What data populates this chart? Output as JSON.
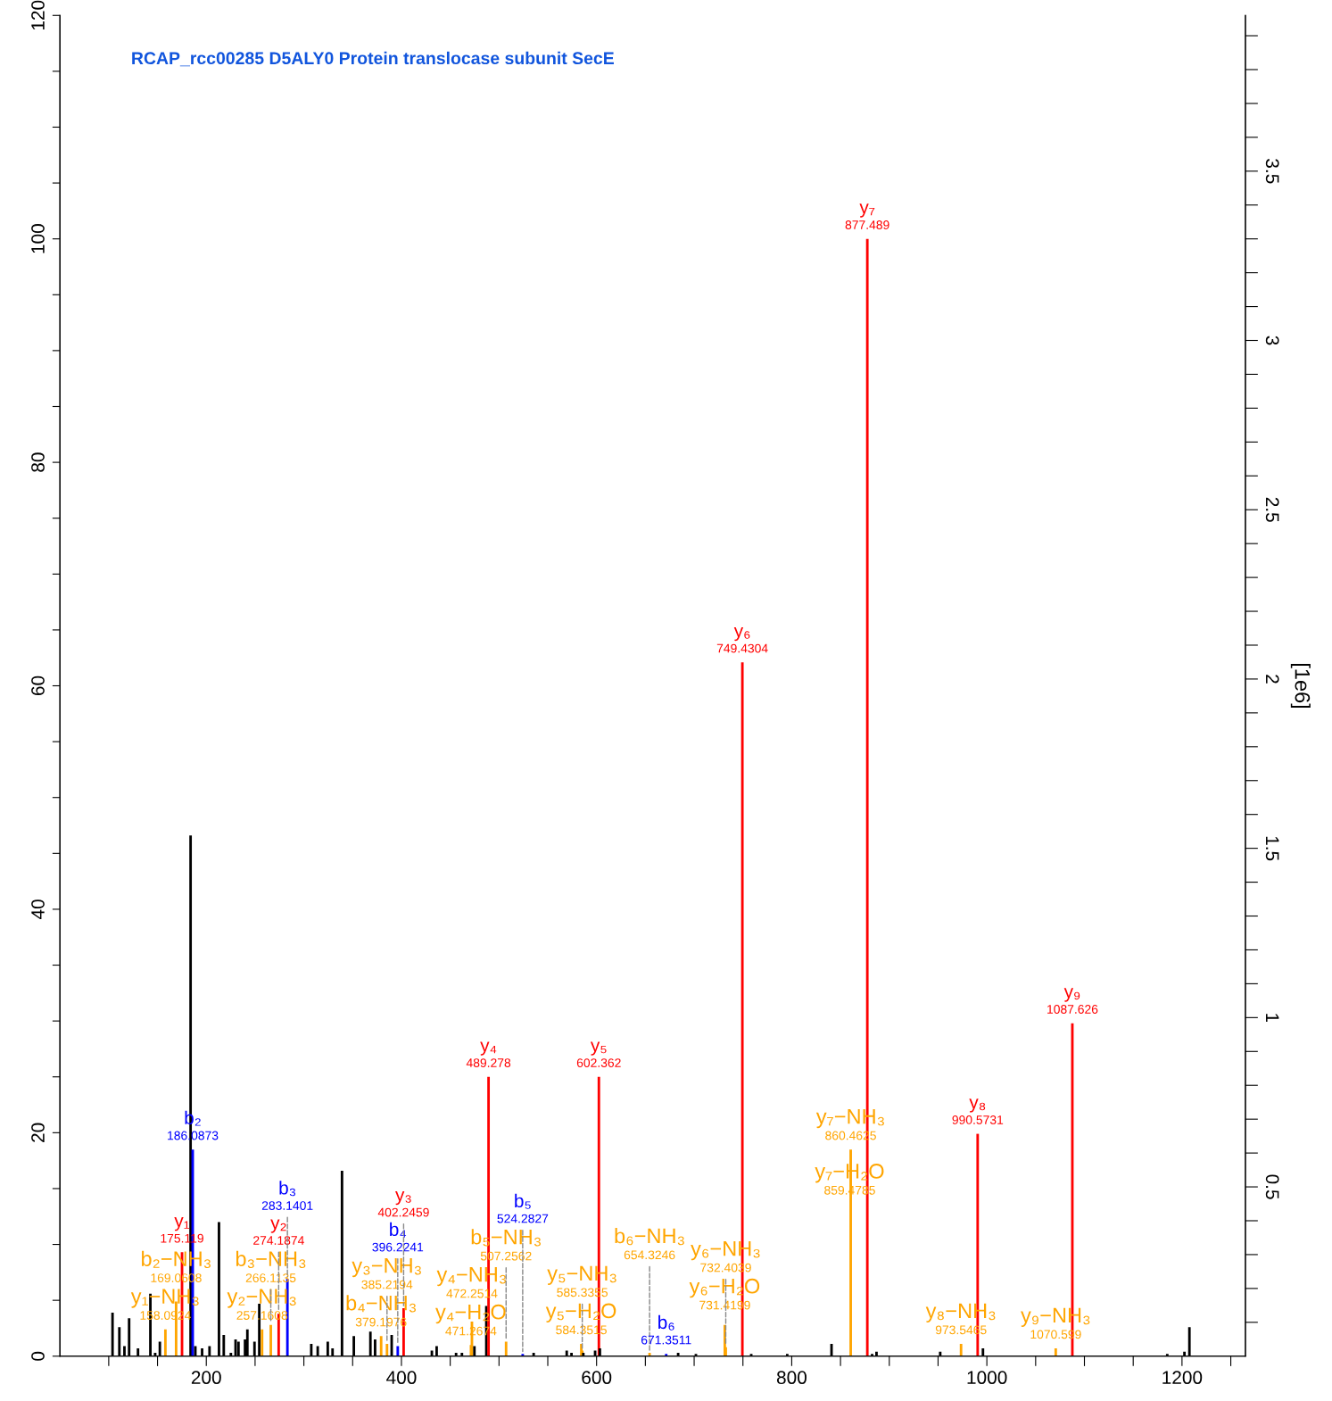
{
  "chart_data": {
    "type": "bar",
    "title": "RCAP_rcc00285 D5ALY0 Protein translocase subunit SecE",
    "y2label": "[1e6]",
    "x": [
      103.9,
      110.9,
      116.1,
      120.9,
      130,
      142.7,
      147.6,
      152.4,
      158.0924,
      169.0608,
      175.119,
      183.9,
      186.0873,
      188.8,
      195.7,
      203.3,
      213,
      217.9,
      225.2,
      230,
      233,
      239.7,
      242.1,
      249.4,
      254.3,
      257.1608,
      266.1135,
      274.1874,
      283.1401,
      307.6,
      314.2,
      324.5,
      329.4,
      339.1,
      351.2,
      368.2,
      373,
      379.1976,
      385.2194,
      390,
      396.2241,
      402.2459,
      431.2,
      436.1,
      456,
      462,
      471.2674,
      472.2514,
      474.8,
      487,
      489.278,
      507.2562,
      524.2827,
      535.5,
      569.4,
      574.3,
      584.3515,
      585.3355,
      586.4,
      598.5,
      602.362,
      603.4,
      654.3246,
      671.3511,
      683.6,
      701.8,
      731.4199,
      732.4039,
      749.4304,
      758.5,
      795.4,
      840.8,
      859.4785,
      860.4625,
      877.489,
      882.4,
      886.9,
      952.2,
      973.5465,
      990.5731,
      996,
      1070.599,
      1087.626,
      1184.9,
      1202.5,
      1207.6
    ],
    "values": [
      3.9,
      2.6,
      0.9,
      3.4,
      0.7,
      5.6,
      0.3,
      1.3,
      2.4,
      4.9,
      9.3,
      46.6,
      18.5,
      0.9,
      0.7,
      0.9,
      12.0,
      1.9,
      0.3,
      1.5,
      1.3,
      1.5,
      2.4,
      1.3,
      4.7,
      2.4,
      2.8,
      3.8,
      6.9,
      1.1,
      0.9,
      1.3,
      0.7,
      16.6,
      1.8,
      2.2,
      1.5,
      1.8,
      1.1,
      1.9,
      0.9,
      4.3,
      0.5,
      0.9,
      0.3,
      0.3,
      1.0,
      3.1,
      0.9,
      4.5,
      25.0,
      1.3,
      0.2,
      0.3,
      0.5,
      0.3,
      1.1,
      0.5,
      0.3,
      0.5,
      25.0,
      0.7,
      0.3,
      0.2,
      0.3,
      0.2,
      2.8,
      0.8,
      62.1,
      0.2,
      0.2,
      1.1,
      null,
      18.5,
      100,
      0.2,
      0.4,
      0.4,
      1.1,
      19.9,
      0.7,
      0.7,
      29.8,
      0.2,
      0.4,
      2.6
    ],
    "colors": [
      "#000000",
      "#000000",
      "#000000",
      "#000000",
      "#000000",
      "#000000",
      "#000000",
      "#000000",
      "#ffa500",
      "#ffa500",
      "#ff0000",
      "#000000",
      "#0000ff",
      "#000000",
      "#000000",
      "#000000",
      "#000000",
      "#000000",
      "#000000",
      "#000000",
      "#000000",
      "#000000",
      "#000000",
      "#000000",
      "#000000",
      "#ffa500",
      "#ffa500",
      "#ff0000",
      "#0000ff",
      "#000000",
      "#000000",
      "#000000",
      "#000000",
      "#000000",
      "#000000",
      "#000000",
      "#000000",
      "#ffa500",
      "#ffa500",
      "#000000",
      "#0000ff",
      "#ff0000",
      "#000000",
      "#000000",
      "#000000",
      "#000000",
      "#ffa500",
      "#ffa500",
      "#000000",
      "#000000",
      "#ff0000",
      "#ffa500",
      "#0000ff",
      "#000000",
      "#000000",
      "#000000",
      "#ffa500",
      "#ffa500",
      "#000000",
      "#000000",
      "#ff0000",
      "#000000",
      "#ffa500",
      "#0000ff",
      "#000000",
      "#000000",
      "#ffa500",
      "#ffa500",
      "#ff0000",
      "#000000",
      "#000000",
      "#000000",
      "#ffa500",
      "#ffa500",
      "#ff0000",
      "#000000",
      "#000000",
      "#000000",
      "#ffa500",
      "#ff0000",
      "#000000",
      "#ffa500",
      "#ff0000",
      "#000000",
      "#000000",
      "#000000"
    ],
    "xlim": [
      50,
      1265
    ],
    "xticks": [
      {
        "value": 100,
        "label": null
      },
      {
        "value": 150,
        "label": null
      },
      200,
      {
        "value": 250,
        "label": null
      },
      {
        "value": 300,
        "label": null
      },
      {
        "value": 350,
        "label": null
      },
      400,
      {
        "value": 450,
        "label": null
      },
      {
        "value": 500,
        "label": null
      },
      {
        "value": 550,
        "label": null
      },
      600,
      {
        "value": 650,
        "label": null
      },
      {
        "value": 700,
        "label": null
      },
      {
        "value": 750,
        "label": null
      },
      800,
      {
        "value": 850,
        "label": null
      },
      {
        "value": 900,
        "label": null
      },
      {
        "value": 950,
        "label": null
      },
      1000,
      {
        "value": 1050,
        "label": null
      },
      {
        "value": 1100,
        "label": null
      },
      {
        "value": 1150,
        "label": null
      },
      1200,
      {
        "value": 1250,
        "label": null
      }
    ],
    "ylim": [
      0,
      120
    ],
    "yticks": [
      0,
      {
        "value": 5,
        "label": null
      },
      {
        "value": 10,
        "label": null
      },
      {
        "value": 15,
        "label": null
      },
      20,
      {
        "value": 25,
        "label": null
      },
      {
        "value": 30,
        "label": null
      },
      {
        "value": 35,
        "label": null
      },
      40,
      {
        "value": 45,
        "label": null
      },
      {
        "value": 50,
        "label": null
      },
      {
        "value": 55,
        "label": null
      },
      60,
      {
        "value": 65,
        "label": null
      },
      {
        "value": 70,
        "label": null
      },
      {
        "value": 75,
        "label": null
      },
      80,
      {
        "value": 85,
        "label": null
      },
      {
        "value": 90,
        "label": null
      },
      {
        "value": 95,
        "label": null
      },
      100,
      {
        "value": 105,
        "label": null
      },
      {
        "value": 110,
        "label": null
      },
      {
        "value": 115,
        "label": null
      },
      120
    ],
    "y2lim": [
      0,
      3.96
    ],
    "y2ticks": [
      {
        "value": 0.1,
        "label": null
      },
      {
        "value": 0.2,
        "label": null
      },
      {
        "value": 0.3,
        "label": null
      },
      {
        "value": 0.4,
        "label": null
      },
      0.5,
      {
        "value": 0.6,
        "label": null
      },
      {
        "value": 0.7,
        "label": null
      },
      {
        "value": 0.8,
        "label": null
      },
      {
        "value": 0.9,
        "label": null
      },
      1,
      {
        "value": 1.1,
        "label": null
      },
      {
        "value": 1.2,
        "label": null
      },
      {
        "value": 1.3,
        "label": null
      },
      {
        "value": 1.4,
        "label": null
      },
      1.5,
      {
        "value": 1.6,
        "label": null
      },
      {
        "value": 1.7,
        "label": null
      },
      {
        "value": 1.8,
        "label": null
      },
      {
        "value": 1.9,
        "label": null
      },
      2,
      {
        "value": 2.1,
        "label": null
      },
      {
        "value": 2.2,
        "label": null
      },
      {
        "value": 2.3,
        "label": null
      },
      {
        "value": 2.4,
        "label": null
      },
      2.5,
      {
        "value": 2.6,
        "label": null
      },
      {
        "value": 2.7,
        "label": null
      },
      {
        "value": 2.8,
        "label": null
      },
      {
        "value": 2.9,
        "label": null
      },
      3,
      {
        "value": 3.1,
        "label": null
      },
      {
        "value": 3.2,
        "label": null
      },
      {
        "value": 3.3,
        "label": null
      },
      {
        "value": 3.4,
        "label": null
      },
      3.5,
      {
        "value": 3.6,
        "label": null
      },
      {
        "value": 3.7,
        "label": null
      },
      {
        "value": 3.8,
        "label": null
      },
      {
        "value": 3.9,
        "label": null
      }
    ],
    "grid": false,
    "annotations": [
      {
        "text": "y₁−NH₃\n158.0924",
        "x": 158.0924,
        "y": 2.4
      },
      {
        "text": "b₂−NH₃\n169.0608",
        "x": 169.0608,
        "y": 4.9
      },
      {
        "text": "y₁\n175.119",
        "x": 175.119,
        "y": 9.3
      },
      {
        "text": "b₂\n186.0873",
        "x": 186.0873,
        "y": 18.5
      },
      {
        "text": "y₂−NH₃\n257.1608",
        "x": 257.1608,
        "y": 2.4
      },
      {
        "text": "b₃−NH₃\n266.1135",
        "x": 266.1135,
        "y": 2.8
      },
      {
        "text": "y₂\n274.1874",
        "x": 274.1874,
        "y": 3.8
      },
      {
        "text": "b₃\n283.1401",
        "x": 283.1401,
        "y": 6.9
      },
      {
        "text": "b₄−NH₃\n379.1976",
        "x": 379.1976,
        "y": 1.8
      },
      {
        "text": "y₃−NH₃\n385.2194",
        "x": 385.2194,
        "y": 1.1
      },
      {
        "text": "b₄\n396.2241",
        "x": 396.2241,
        "y": 0.9
      },
      {
        "text": "y₃\n402.2459",
        "x": 402.2459,
        "y": 4.3
      },
      {
        "text": "y₄−H₂O\n471.2674",
        "x": 471.2674,
        "y": 1.0
      },
      {
        "text": "y₄−NH₃\n472.2514",
        "x": 472.2514,
        "y": 3.1
      },
      {
        "text": "y₄\n489.278",
        "x": 489.278,
        "y": 25.0
      },
      {
        "text": "b₅−NH₃\n507.2562",
        "x": 507.2562,
        "y": 1.3
      },
      {
        "text": "b₅\n524.2827",
        "x": 524.2827,
        "y": 0.2
      },
      {
        "text": "y₅−H₂O\n584.3515",
        "x": 584.3515,
        "y": 1.1
      },
      {
        "text": "y₅−NH₃\n585.3355",
        "x": 585.3355,
        "y": 0.5
      },
      {
        "text": "y₅\n602.362",
        "x": 602.362,
        "y": 25.0
      },
      {
        "text": "b₆−NH₃\n654.3246",
        "x": 654.3246,
        "y": 0.3
      },
      {
        "text": "b₆\n671.3511",
        "x": 671.3511,
        "y": 0.2
      },
      {
        "text": "y₆−H₂O\n731.4199",
        "x": 731.4199,
        "y": 2.8
      },
      {
        "text": "y₆−NH₃\n732.4039",
        "x": 732.4039,
        "y": 0.8
      },
      {
        "text": "y₆\n749.4304",
        "x": 749.4304,
        "y": 62.1
      },
      {
        "text": "y₇−H₂O\n859.4785",
        "x": 859.4785,
        "y": 13.6
      },
      {
        "text": "y₇−NH₃\n860.4625",
        "x": 860.4625,
        "y": 18.5
      },
      {
        "text": "y₇\n877.489",
        "x": 877.489,
        "y": 100
      },
      {
        "text": "y₈−NH₃\n973.5465",
        "x": 973.5465,
        "y": 1.1
      },
      {
        "text": "y₈\n990.5731",
        "x": 990.5731,
        "y": 19.9
      },
      {
        "text": "y₉−NH₃\n1070.599",
        "x": 1070.599,
        "y": 0.7
      },
      {
        "text": "y₉\n1087.626",
        "x": 1087.626,
        "y": 29.8
      }
    ]
  }
}
